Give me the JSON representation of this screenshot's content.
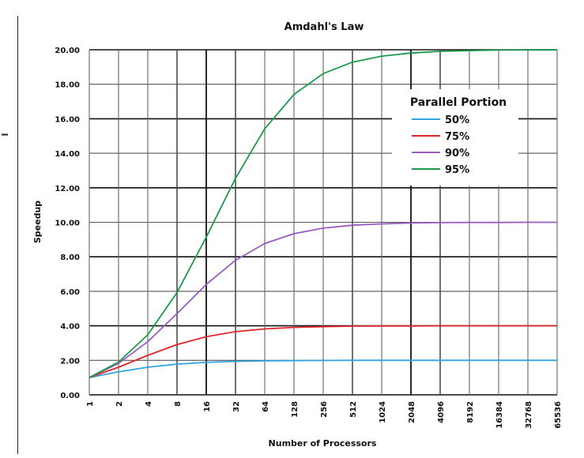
{
  "chart_data": {
    "type": "line",
    "title": "Amdahl's Law",
    "xlabel": "Number of Processors",
    "ylabel": "Speedup",
    "x_scale": "log2",
    "x_ticks": [
      "1",
      "2",
      "4",
      "8",
      "16",
      "32",
      "64",
      "128",
      "256",
      "512",
      "1024",
      "2048",
      "4096",
      "8192",
      "16384",
      "32768",
      "65536"
    ],
    "x_tick_values": [
      1,
      2,
      4,
      8,
      16,
      32,
      64,
      128,
      256,
      512,
      1024,
      2048,
      4096,
      8192,
      16384,
      32768,
      65536
    ],
    "y_ticks": [
      "0.00",
      "2.00",
      "4.00",
      "6.00",
      "8.00",
      "10.00",
      "12.00",
      "14.00",
      "16.00",
      "18.00",
      "20.00"
    ],
    "ylim": [
      0,
      20
    ],
    "xlim": [
      1,
      65536
    ],
    "grid": true,
    "legend": {
      "title": "Parallel Portion",
      "placement": "top-right"
    },
    "series": [
      {
        "name": "50%",
        "color": "#2fa4e0",
        "x": [
          1,
          2,
          4,
          8,
          16,
          32,
          64,
          128,
          256,
          512,
          1024,
          2048,
          4096,
          8192,
          16384,
          32768,
          65536
        ],
        "values": [
          1.0,
          1.33,
          1.6,
          1.78,
          1.88,
          1.94,
          1.97,
          1.98,
          1.99,
          2.0,
          2.0,
          2.0,
          2.0,
          2.0,
          2.0,
          2.0,
          2.0
        ]
      },
      {
        "name": "75%",
        "color": "#e0262a",
        "x": [
          1,
          2,
          4,
          8,
          16,
          32,
          64,
          128,
          256,
          512,
          1024,
          2048,
          4096,
          8192,
          16384,
          32768,
          65536
        ],
        "values": [
          1.0,
          1.6,
          2.29,
          2.91,
          3.37,
          3.66,
          3.82,
          3.91,
          3.95,
          3.98,
          3.99,
          3.99,
          4.0,
          4.0,
          4.0,
          4.0,
          4.0
        ]
      },
      {
        "name": "90%",
        "color": "#9a5cc0",
        "x": [
          1,
          2,
          4,
          8,
          16,
          32,
          64,
          128,
          256,
          512,
          1024,
          2048,
          4096,
          8192,
          16384,
          32768,
          65536
        ],
        "values": [
          1.0,
          1.82,
          3.08,
          4.71,
          6.4,
          7.8,
          8.77,
          9.34,
          9.66,
          9.83,
          9.91,
          9.96,
          9.98,
          9.99,
          9.99,
          10.0,
          10.0
        ]
      },
      {
        "name": "95%",
        "color": "#1a9a4a",
        "x": [
          1,
          2,
          4,
          8,
          16,
          32,
          64,
          128,
          256,
          512,
          1024,
          2048,
          4096,
          8192,
          16384,
          32768,
          65536
        ],
        "values": [
          1.0,
          1.9,
          3.48,
          5.93,
          9.14,
          12.55,
          15.42,
          17.41,
          18.62,
          19.28,
          19.63,
          19.81,
          19.91,
          19.95,
          19.98,
          19.99,
          19.99
        ]
      }
    ]
  }
}
